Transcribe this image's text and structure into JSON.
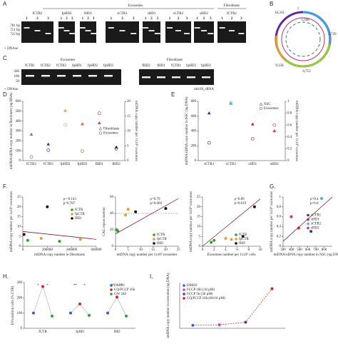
{
  "letters": [
    "A",
    "B",
    "C",
    "D",
    "E",
    "F.",
    "G.",
    "H.",
    "I."
  ],
  "gel_a": {
    "exosomes": "Exosomes",
    "fibroblasts": "Fibroblasts",
    "lanes": [
      "fCTR2",
      "fpHD3",
      "fHD1",
      "sCTR1",
      "sHD1",
      "sCTR2",
      "sHD2",
      "fCTR2"
    ],
    "lane_numbers": [
      "1",
      "2",
      "3"
    ],
    "ladder": [
      "781 bp",
      "751 bp",
      "722 bp"
    ],
    "dnase": "+ DNAse"
  },
  "gel_c": {
    "exosomes": "Exosomes",
    "fibroblasts": "Fibroblasts",
    "lanes_left": [
      "fCTR1",
      "fCTR2",
      "fCTR3",
      "fpHD1",
      "fpHD2",
      "fpHD3"
    ],
    "lanes_right": [
      "fHD2",
      "fHD1",
      "fCTR1",
      "fpHD3",
      "fpHD2"
    ],
    "ladder": [
      "200",
      "100",
      "50"
    ],
    "dnase": "+ DNAse",
    "gene": "mt16S_rRNA"
  },
  "map_b": {
    "labels": [
      "16,331",
      "1",
      "3,729",
      "9,158",
      "6,753",
      "5,566"
    ]
  },
  "chart_data": [
    {
      "type": "category_scatter",
      "categories": [
        "fCTR2",
        "fCTR3",
        "fpHD2",
        "fpHD3",
        "fHD1",
        "fHD2"
      ],
      "colors": [
        "#3a8fd8",
        "#1f3f99",
        "#e8a04a",
        "#e05c2a",
        "#d94040",
        "#222222"
      ],
      "ylim": [
        0,
        600
      ],
      "yticks": [
        0,
        100,
        200,
        300,
        400,
        500,
        600
      ],
      "y2lim": [
        0,
        20
      ],
      "y2ticks": [
        0,
        5,
        10,
        15,
        20
      ],
      "ylabel": "mtDNA/nDNA copy number in fibroblasts (ng DNA)",
      "y2label": "mtDNA copy number per 1x10⁹ exosomes",
      "legend": "center-right",
      "series": [
        {
          "name": "Fibroblasts",
          "marker": "triangle",
          "values": [
            265,
            165,
            505,
            370,
            380,
            135
          ]
        },
        {
          "name": "Exosomes",
          "marker": "circle",
          "axis": "y2",
          "values": [
            1.2,
            3.5,
            12,
            3.2,
            16,
            4
          ]
        }
      ]
    },
    {
      "type": "category_scatter",
      "categories": [
        "sCTR1",
        "sCTR2",
        "sHD1",
        "sHD2"
      ],
      "colors": [
        "#1f3f99",
        "#4fb0e0",
        "#c0282a",
        "#c8327a"
      ],
      "ylim": [
        0,
        800
      ],
      "yticks": [
        0,
        200,
        400,
        600,
        800
      ],
      "y2lim": [
        0,
        1
      ],
      "y2ticks": [
        0,
        0.2,
        0.4,
        0.6,
        0.8,
        1
      ],
      "ylabel": "mtDNA/nDNA copy number in NSC (ng DNA)",
      "y2label": "mtDNA copy number per 1x10⁹ exosomes",
      "legend": "top-right",
      "series": [
        {
          "name": "NSC",
          "marker": "triangle",
          "values": [
            640,
            770,
            490,
            400
          ]
        },
        {
          "name": "Exosomes",
          "marker": "circle",
          "axis": "y2",
          "values": [
            0.3,
            0.97,
            0.37,
            0.6
          ]
        }
      ]
    },
    {
      "type": "scatter",
      "xlim": [
        0,
        600000
      ],
      "xticks": [
        0,
        200000,
        400000,
        600000
      ],
      "ylim": [
        0,
        25
      ],
      "yticks": [
        0,
        5,
        10,
        15,
        20,
        25
      ],
      "xlabel": "mtDNA copy number in fibroblasts",
      "ylabel": "mtDNA copy number per 1x10⁹ exosomes",
      "annotations": [
        "ρ=-0.143",
        "p=0.787"
      ],
      "trend": {
        "x": [
          0,
          600000
        ],
        "y": [
          7.5,
          3.5
        ]
      },
      "legend": "top-right",
      "series": [
        {
          "name": "fCTR",
          "color": "#2ca02c",
          "x": [
            40000,
            300000
          ],
          "values": [
            3,
            2.5
          ]
        },
        {
          "name": "fpCTR",
          "color": "#e89a3c",
          "x": [
            150000,
            470000
          ],
          "values": [
            4,
            3.5
          ]
        },
        {
          "name": "fHD",
          "color": "#111111",
          "x": [
            10000,
            200000
          ],
          "values": [
            6,
            20
          ]
        }
      ]
    },
    {
      "type": "scatter",
      "xlim": [
        0,
        25
      ],
      "xticks": [
        0,
        5,
        10,
        15,
        20,
        25
      ],
      "ylim": [
        0,
        60
      ],
      "yticks": [
        0,
        20,
        40,
        60
      ],
      "xlabel": "mtDNA copy number per 1x10⁹ exosomes",
      "ylabel": "CAG repeat number",
      "annotations": [
        "ρ=0.79",
        "p=0.066"
      ],
      "reference": 40,
      "trend": {
        "x": [
          0,
          25
        ],
        "y": [
          15,
          58
        ]
      },
      "legend": "bottom-right",
      "series": [
        {
          "name": "fCTR",
          "color": "#2ca02c",
          "x": [
            0.5,
            1
          ],
          "values": [
            20,
            18
          ]
        },
        {
          "name": "fpCTR",
          "color": "#e89a3c",
          "x": [
            4,
            5
          ],
          "values": [
            38,
            45
          ]
        },
        {
          "name": "fHD",
          "color": "#111111",
          "x": [
            8,
            20
          ],
          "values": [
            42,
            46
          ]
        }
      ]
    },
    {
      "type": "scatter",
      "xlim": [
        0,
        10
      ],
      "xticks": [
        0,
        2,
        4,
        6,
        8,
        10
      ],
      "ylim": [
        0,
        25
      ],
      "yticks": [
        0,
        5,
        10,
        15,
        20,
        25
      ],
      "xlabel": "Exosomes number per 1x10⁵ cells",
      "ylabel": "mtDNA copy number per 1x10⁹ exosomes",
      "annotations": [
        "ρ=0.89",
        "p=0.019"
      ],
      "trend": {
        "x": [
          0,
          10
        ],
        "y": [
          0,
          24
        ]
      },
      "legend": "bottom-right",
      "series": [
        {
          "name": "fCTR",
          "color": "#2ca02c",
          "x": [
            1.5,
            2
          ],
          "values": [
            2,
            3
          ]
        },
        {
          "name": "fpCTR",
          "color": "#e89a3c",
          "x": [
            4,
            5
          ],
          "values": [
            4,
            3.5
          ]
        },
        {
          "name": "fHD",
          "color": "#111111",
          "x": [
            7,
            9
          ],
          "values": [
            5,
            20
          ]
        }
      ]
    },
    {
      "type": "scatter",
      "xlim": [
        300,
        900
      ],
      "xticks": [
        300,
        400,
        500,
        600,
        700,
        800
      ],
      "ylim": [
        0,
        1
      ],
      "yticks": [
        0,
        0.2,
        0.4,
        0.6,
        0.8,
        1
      ],
      "xlabel": "mtDNA/nDNA copy number in NSC (ng DNA)",
      "ylabel": "mtDNA copy number per 1x10⁹ exosomes",
      "annotations": [
        "ρ=0.4",
        "p=0.6"
      ],
      "trend": {
        "x": [
          300,
          900
        ],
        "y": [
          0.1,
          1
        ]
      },
      "legend": "center-right",
      "series": [
        {
          "name": "sCTR1",
          "color": "#1f3f99",
          "x": [
            640
          ],
          "values": [
            0.3
          ]
        },
        {
          "name": "sHD1",
          "color": "#c0282a",
          "x": [
            490
          ],
          "values": [
            0.37
          ]
        },
        {
          "name": "sCTR2",
          "color": "#4fb0e0",
          "x": [
            770
          ],
          "values": [
            0.97
          ]
        },
        {
          "name": "sHD2",
          "color": "#c8327a",
          "x": [
            400
          ],
          "values": [
            0.6
          ]
        }
      ]
    },
    {
      "type": "dot_line",
      "categories": [
        "fCTR",
        "fpHD",
        "fHD"
      ],
      "ylim": [
        0,
        300
      ],
      "yticks": [
        0,
        100,
        200,
        300
      ],
      "ylabel": "EVs/million cells (% CTR)",
      "annotations": [
        "*",
        "*",
        "**",
        "*",
        "**",
        "*"
      ],
      "legend": "top-right",
      "series": [
        {
          "name": "DMSO",
          "color": "#2b5fd9",
          "values": [
            100,
            100,
            100
          ]
        },
        {
          "name": "CQ/FCCP 16h",
          "color": "#e02020",
          "values": [
            275,
            160,
            205
          ]
        },
        {
          "name": "GW 24h",
          "color": "#2ca02c",
          "values": [
            80,
            85,
            80
          ]
        }
      ]
    },
    {
      "type": "line",
      "ylim": [
        0,
        3000
      ],
      "ylabel": "mtDNA copy number in exosomes (ng DNA)",
      "legend": "top-left",
      "series": [
        {
          "name": "DMSO",
          "color": "#2b5fd9",
          "values": [
            200
          ]
        },
        {
          "name": "FCCP 16h (10 µM)",
          "color": "#c040c0",
          "values": [
            230
          ]
        },
        {
          "name": "FCCP 5h (30 µM)",
          "color": "#6a2a9a",
          "values": [
            400
          ]
        },
        {
          "name": "CQ/FCCP 16h (60/10 µM)",
          "color": "#e02020",
          "values": [
            2600
          ]
        }
      ]
    }
  ]
}
